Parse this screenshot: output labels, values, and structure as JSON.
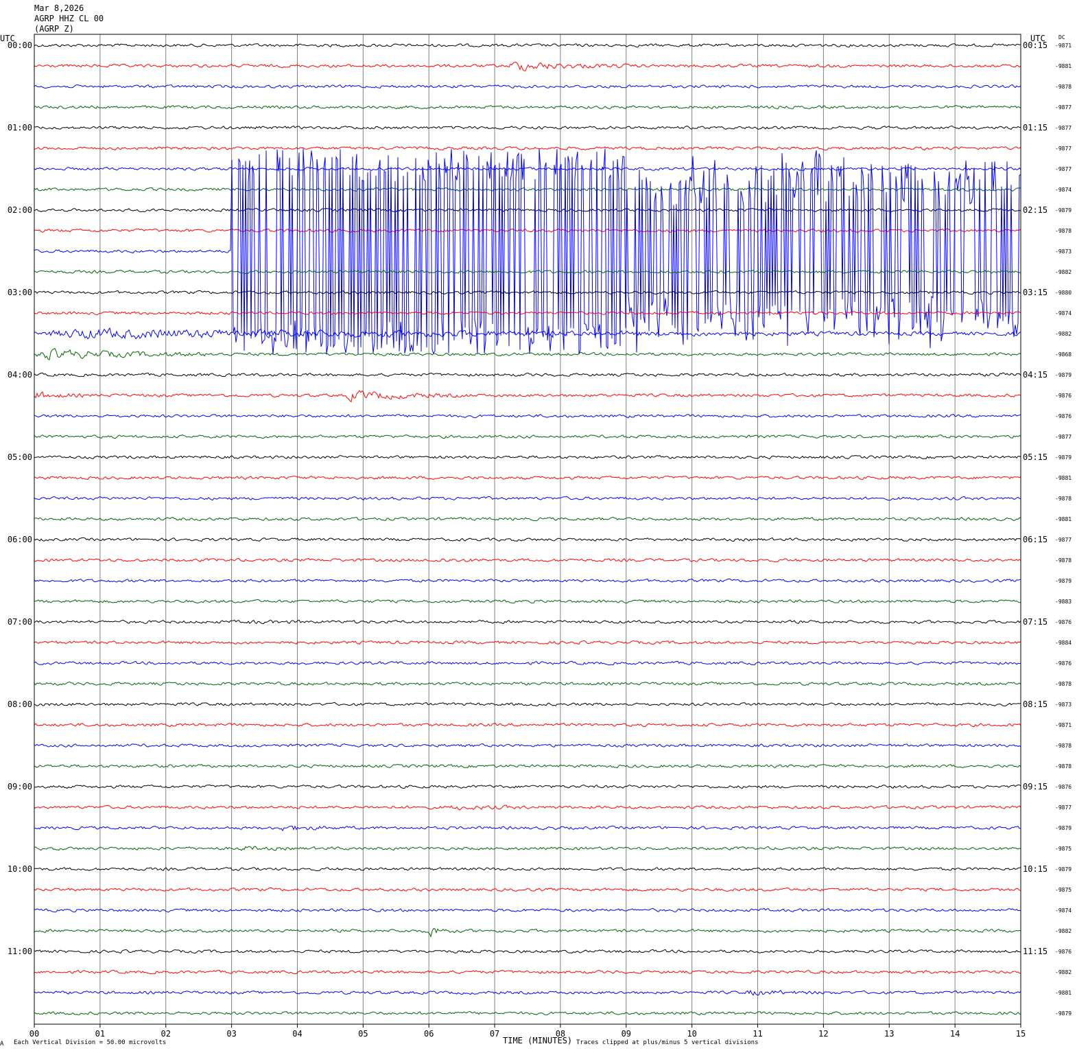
{
  "header": {
    "date": "Mar 8,2026",
    "station": "AGRP HHZ CL 00",
    "component": "(AGRP Z)"
  },
  "left_axis_title": "UTC",
  "right_axis_title": "UTC",
  "dc_title": "DC",
  "footer": {
    "scale_note": "Each Vertical Division =   50.00 microvolts",
    "x_title": "TIME (MINUTES)",
    "clip_note": "Traces clipped at plus/minus 5 vertical divisions",
    "corner_mark": "A"
  },
  "colors": {
    "trace_cycle": [
      "#000000",
      "#ff0000",
      "#0000ff",
      "#006400"
    ],
    "grid": "#808080"
  },
  "chart_data": {
    "type": "line",
    "title": "Mar 8,2026 AGRP HHZ CL 00 (AGRP Z)",
    "xlabel": "TIME (MINUTES)",
    "ylabel": "UTC",
    "xlim": [
      0,
      15
    ],
    "x_ticks": [
      "00",
      "01",
      "02",
      "03",
      "04",
      "05",
      "06",
      "07",
      "08",
      "09",
      "10",
      "11",
      "12",
      "13",
      "14",
      "15"
    ],
    "left_hour_labels": [
      "00:00",
      "01:00",
      "02:00",
      "03:00",
      "04:00",
      "05:00",
      "06:00",
      "07:00",
      "08:00",
      "09:00",
      "10:00",
      "11:00"
    ],
    "right_hour_labels": [
      "00:15",
      "01:15",
      "02:15",
      "03:15",
      "04:15",
      "05:15",
      "06:15",
      "07:15",
      "08:15",
      "09:15",
      "10:15",
      "11:15"
    ],
    "dc_offsets": [
      "-9871",
      "-9881",
      "-9878",
      "-9877",
      "-9877",
      "-9877",
      "-9877",
      "-9874",
      "-9879",
      "-9878",
      "-9873",
      "-9882",
      "-9880",
      "-9874",
      "-9882",
      "-9868",
      "-9879",
      "-9876",
      "-9876",
      "-9877",
      "-9879",
      "-9881",
      "-9878",
      "-9881",
      "-9877",
      "-9878",
      "-9879",
      "-9883",
      "-9876",
      "-9884",
      "-9876",
      "-9878",
      "-9873",
      "-9871",
      "-9878",
      "-9878",
      "-9876",
      "-9877",
      "-9879",
      "-9875",
      "-9879",
      "-9875",
      "-9874",
      "-9882",
      "-9876",
      "-9882",
      "-9881",
      "-9879"
    ],
    "minutes_per_line": 15,
    "events": [
      {
        "line": 1,
        "start_min": 7.2,
        "end_min": 9.0,
        "amp": 4
      },
      {
        "line": 8,
        "start_min": 11.0,
        "end_min": 11.7,
        "amp": 1.3
      },
      {
        "line": 10,
        "start_min": 3.0,
        "end_min": 15.0,
        "amp": 10,
        "clipped": true
      },
      {
        "line": 14,
        "start_min": 0.0,
        "end_min": 15.0,
        "amp": 4
      },
      {
        "line": 15,
        "start_min": 0.0,
        "end_min": 3.0,
        "amp": 4
      },
      {
        "line": 16,
        "start_min": 14.5,
        "end_min": 15.0,
        "amp": 2
      },
      {
        "line": 17,
        "start_min": 0.0,
        "end_min": 0.8,
        "amp": 3
      },
      {
        "line": 17,
        "start_min": 4.7,
        "end_min": 6.6,
        "amp": 4
      },
      {
        "line": 23,
        "start_min": 3.0,
        "end_min": 3.6,
        "amp": 1.2
      },
      {
        "line": 25,
        "start_min": 6.0,
        "end_min": 7.0,
        "amp": 1.8
      },
      {
        "line": 28,
        "start_min": 3.2,
        "end_min": 4.3,
        "amp": 1.6
      },
      {
        "line": 32,
        "start_min": 0.0,
        "end_min": 0.8,
        "amp": 1.3
      },
      {
        "line": 37,
        "start_min": 6.3,
        "end_min": 7.6,
        "amp": 2
      },
      {
        "line": 38,
        "start_min": 3.7,
        "end_min": 4.9,
        "amp": 2.5
      },
      {
        "line": 39,
        "start_min": 3.1,
        "end_min": 3.8,
        "amp": 2.2
      },
      {
        "line": 43,
        "start_min": 6.0,
        "end_min": 6.4,
        "amp": 5
      },
      {
        "line": 46,
        "start_min": 10.8,
        "end_min": 12.2,
        "amp": 2.3
      }
    ]
  }
}
